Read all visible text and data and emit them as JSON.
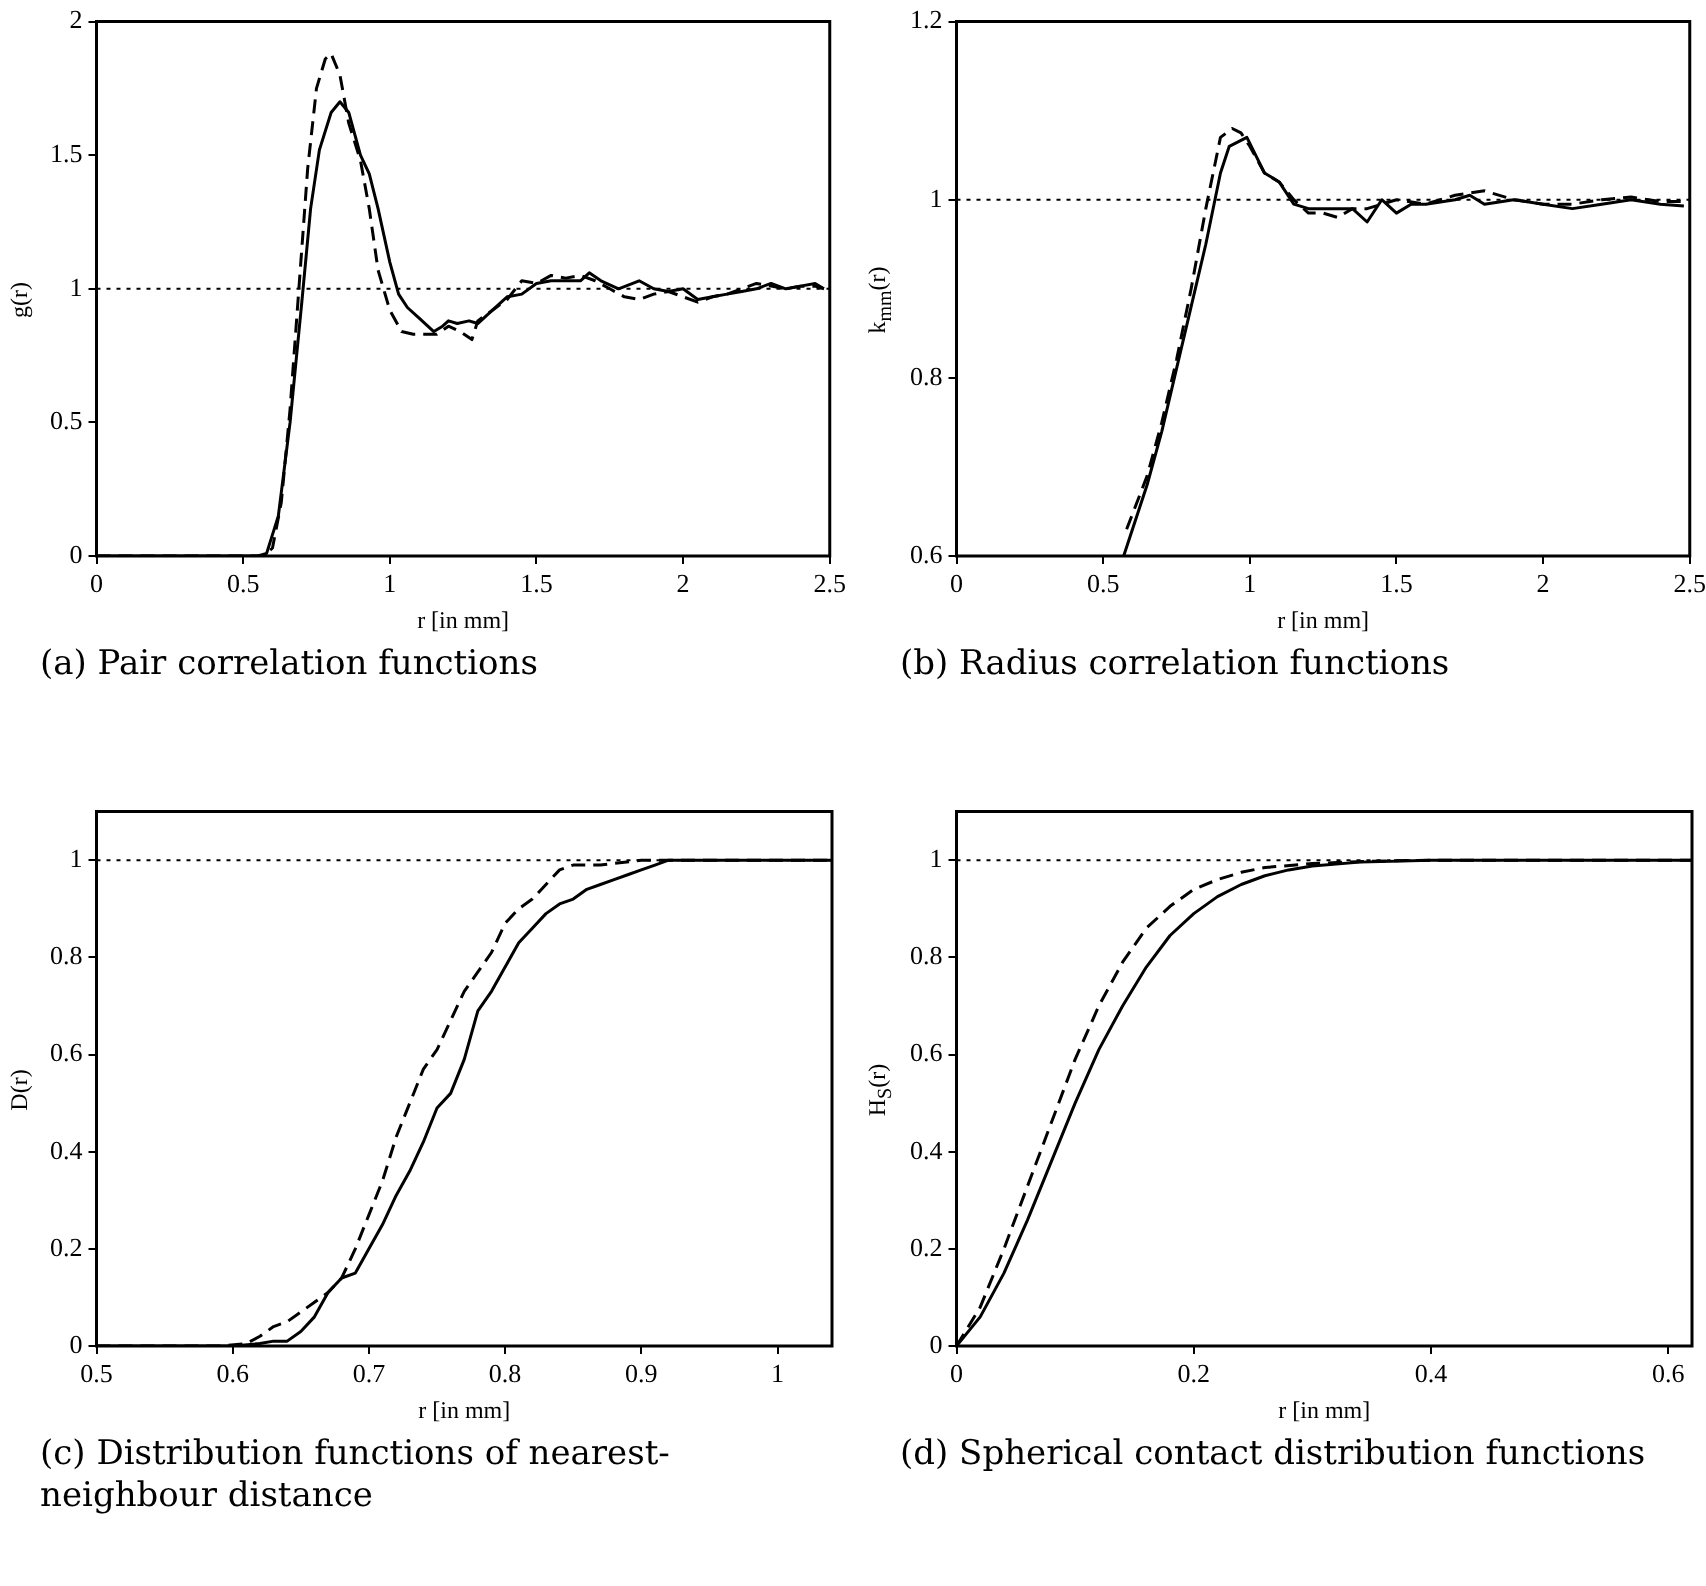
{
  "chart_data": [
    {
      "type": "line",
      "title": "(a) Pair correlation functions",
      "xlabel": "r [in mm]",
      "ylabel": "g(r)",
      "xlim": [
        0,
        2.5
      ],
      "xticks": [
        0,
        0.5,
        1,
        1.5,
        2,
        2.5
      ],
      "ylim": [
        0,
        2
      ],
      "yticks": [
        0,
        0.5,
        1,
        1.5,
        2
      ],
      "grid": false,
      "legend": false,
      "marker": "none",
      "ref_lines": [
        {
          "axis": "y",
          "value": 1,
          "line_style": "dotted",
          "color": "#000000"
        }
      ],
      "series": [
        {
          "color": "#000000",
          "line_style": "solid",
          "x": [
            0,
            0.55,
            0.58,
            0.62,
            0.66,
            0.7,
            0.73,
            0.76,
            0.8,
            0.83,
            0.86,
            0.9,
            0.93,
            0.96,
            1.0,
            1.03,
            1.06,
            1.1,
            1.15,
            1.18,
            1.2,
            1.23,
            1.27,
            1.3,
            1.35,
            1.4,
            1.45,
            1.5,
            1.55,
            1.6,
            1.65,
            1.68,
            1.72,
            1.78,
            1.85,
            1.9,
            1.95,
            2.0,
            2.05,
            2.1,
            2.15,
            2.2,
            2.25,
            2.3,
            2.35,
            2.4,
            2.45,
            2.48
          ],
          "values": [
            0,
            0,
            0.01,
            0.15,
            0.5,
            0.95,
            1.3,
            1.52,
            1.66,
            1.7,
            1.66,
            1.5,
            1.43,
            1.3,
            1.1,
            0.98,
            0.93,
            0.89,
            0.84,
            0.86,
            0.88,
            0.87,
            0.88,
            0.87,
            0.92,
            0.97,
            0.98,
            1.02,
            1.03,
            1.03,
            1.03,
            1.06,
            1.03,
            1.0,
            1.03,
            1.0,
            0.99,
            1.0,
            0.96,
            0.97,
            0.98,
            0.99,
            1.0,
            1.02,
            1.0,
            1.01,
            1.02,
            1.0
          ]
        },
        {
          "color": "#000000",
          "line_style": "dashed",
          "x": [
            0,
            0.57,
            0.6,
            0.63,
            0.66,
            0.69,
            0.72,
            0.75,
            0.78,
            0.8,
            0.83,
            0.86,
            0.9,
            0.93,
            0.96,
            1.0,
            1.04,
            1.08,
            1.12,
            1.16,
            1.2,
            1.24,
            1.28,
            1.3,
            1.35,
            1.4,
            1.45,
            1.5,
            1.55,
            1.6,
            1.65,
            1.7,
            1.75,
            1.8,
            1.85,
            1.9,
            1.95,
            2.0,
            2.05,
            2.1,
            2.15,
            2.2,
            2.25,
            2.3,
            2.35,
            2.4,
            2.45,
            2.48
          ],
          "values": [
            0,
            0,
            0.03,
            0.2,
            0.55,
            1.0,
            1.45,
            1.75,
            1.86,
            1.88,
            1.8,
            1.62,
            1.48,
            1.3,
            1.07,
            0.92,
            0.84,
            0.83,
            0.83,
            0.83,
            0.86,
            0.84,
            0.81,
            0.88,
            0.92,
            0.96,
            1.03,
            1.02,
            1.05,
            1.04,
            1.05,
            1.03,
            1.0,
            0.97,
            0.96,
            0.98,
            0.99,
            0.97,
            0.95,
            0.97,
            0.98,
            1.0,
            1.02,
            1.01,
            1.0,
            1.01,
            1.01,
            1.0
          ]
        }
      ]
    },
    {
      "type": "line",
      "title": "(b) Radius correlation functions",
      "xlabel": "r [in mm]",
      "ylabel": "k$_{mm}$(r)",
      "xlim": [
        0,
        2.5
      ],
      "xticks": [
        0,
        0.5,
        1,
        1.5,
        2,
        2.5
      ],
      "ylim": [
        0.6,
        1.2
      ],
      "yticks": [
        0.6,
        0.8,
        1,
        1.2
      ],
      "grid": false,
      "legend": false,
      "marker": "none",
      "ref_lines": [
        {
          "axis": "y",
          "value": 1,
          "line_style": "dotted",
          "color": "#000000"
        }
      ],
      "series": [
        {
          "color": "#000000",
          "line_style": "solid",
          "x": [
            0.57,
            0.6,
            0.65,
            0.7,
            0.75,
            0.8,
            0.85,
            0.9,
            0.93,
            0.96,
            0.99,
            1.02,
            1.05,
            1.1,
            1.15,
            1.2,
            1.25,
            1.3,
            1.35,
            1.4,
            1.45,
            1.5,
            1.55,
            1.6,
            1.7,
            1.75,
            1.8,
            1.9,
            2.0,
            2.1,
            2.2,
            2.3,
            2.4,
            2.48
          ],
          "values": [
            0.6,
            0.63,
            0.68,
            0.74,
            0.81,
            0.88,
            0.95,
            1.03,
            1.06,
            1.065,
            1.07,
            1.05,
            1.03,
            1.02,
            0.995,
            0.99,
            0.99,
            0.99,
            0.99,
            0.975,
            1.0,
            0.985,
            0.995,
            0.995,
            1.0,
            1.005,
            0.995,
            1.0,
            0.995,
            0.99,
            0.995,
            1.0,
            0.995,
            0.993
          ]
        },
        {
          "color": "#000000",
          "line_style": "dashed",
          "x": [
            0.58,
            0.65,
            0.7,
            0.75,
            0.8,
            0.85,
            0.9,
            0.94,
            0.97,
            1.0,
            1.05,
            1.1,
            1.15,
            1.2,
            1.25,
            1.3,
            1.35,
            1.4,
            1.5,
            1.6,
            1.7,
            1.8,
            1.9,
            2.0,
            2.1,
            2.2,
            2.3,
            2.4,
            2.48
          ],
          "values": [
            0.63,
            0.69,
            0.75,
            0.82,
            0.9,
            0.99,
            1.07,
            1.08,
            1.075,
            1.06,
            1.03,
            1.02,
            1.0,
            0.985,
            0.985,
            0.98,
            0.99,
            0.99,
            1.0,
            0.995,
            1.005,
            1.01,
            1.0,
            0.995,
            0.995,
            1.0,
            1.003,
            0.998,
            0.998
          ]
        }
      ]
    },
    {
      "type": "line",
      "title": "(c) Distribution functions of nearest-neighbour distance",
      "xlabel": "r [in mm]",
      "ylabel": "D(r)",
      "xlim": [
        0.5,
        1.04
      ],
      "xticks": [
        0.5,
        0.6,
        0.7,
        0.8,
        0.9,
        1
      ],
      "ylim": [
        0,
        1.1
      ],
      "yticks": [
        0,
        0.2,
        0.4,
        0.6,
        0.8,
        1
      ],
      "grid": false,
      "legend": false,
      "marker": "none",
      "ref_lines": [
        {
          "axis": "y",
          "value": 1,
          "line_style": "dotted",
          "color": "#000000"
        }
      ],
      "series": [
        {
          "color": "#000000",
          "line_style": "solid",
          "x": [
            0.5,
            0.6,
            0.62,
            0.63,
            0.64,
            0.65,
            0.66,
            0.67,
            0.68,
            0.69,
            0.7,
            0.71,
            0.72,
            0.73,
            0.74,
            0.75,
            0.76,
            0.77,
            0.78,
            0.79,
            0.8,
            0.81,
            0.82,
            0.83,
            0.84,
            0.85,
            0.86,
            0.87,
            0.88,
            0.89,
            0.9,
            0.91,
            0.92,
            1.04
          ],
          "values": [
            0,
            0,
            0.005,
            0.01,
            0.01,
            0.03,
            0.06,
            0.11,
            0.14,
            0.15,
            0.2,
            0.25,
            0.31,
            0.36,
            0.42,
            0.49,
            0.52,
            0.59,
            0.69,
            0.73,
            0.78,
            0.83,
            0.86,
            0.89,
            0.91,
            0.92,
            0.94,
            0.95,
            0.96,
            0.97,
            0.98,
            0.99,
            1.0,
            1.0
          ]
        },
        {
          "color": "#000000",
          "line_style": "dashed",
          "x": [
            0.5,
            0.59,
            0.61,
            0.62,
            0.63,
            0.64,
            0.65,
            0.66,
            0.67,
            0.68,
            0.69,
            0.7,
            0.71,
            0.72,
            0.73,
            0.74,
            0.75,
            0.76,
            0.77,
            0.78,
            0.79,
            0.8,
            0.81,
            0.82,
            0.83,
            0.84,
            0.85,
            0.87,
            0.9,
            1.04
          ],
          "values": [
            0,
            0,
            0.005,
            0.02,
            0.04,
            0.05,
            0.07,
            0.09,
            0.11,
            0.14,
            0.2,
            0.27,
            0.34,
            0.43,
            0.5,
            0.57,
            0.61,
            0.67,
            0.73,
            0.77,
            0.81,
            0.87,
            0.9,
            0.92,
            0.95,
            0.98,
            0.99,
            0.99,
            1.0,
            1.0
          ]
        }
      ]
    },
    {
      "type": "line",
      "title": "(d) Spherical contact distribution functions",
      "xlabel": "r [in mm]",
      "ylabel": "H$_{S}$(r)",
      "xlim": [
        0,
        0.62
      ],
      "xticks": [
        0,
        0.2,
        0.4,
        0.6
      ],
      "ylim": [
        0,
        1.1
      ],
      "yticks": [
        0,
        0.2,
        0.4,
        0.6,
        0.8,
        1
      ],
      "grid": false,
      "legend": false,
      "marker": "none",
      "ref_lines": [
        {
          "axis": "y",
          "value": 1,
          "line_style": "dotted",
          "color": "#000000"
        }
      ],
      "series": [
        {
          "color": "#000000",
          "line_style": "solid",
          "x": [
            0,
            0.02,
            0.04,
            0.06,
            0.08,
            0.1,
            0.12,
            0.14,
            0.16,
            0.18,
            0.2,
            0.22,
            0.24,
            0.26,
            0.28,
            0.3,
            0.34,
            0.4,
            0.62
          ],
          "values": [
            0,
            0.06,
            0.15,
            0.26,
            0.38,
            0.5,
            0.61,
            0.7,
            0.78,
            0.845,
            0.89,
            0.925,
            0.95,
            0.968,
            0.98,
            0.988,
            0.996,
            1.0,
            1.0
          ]
        },
        {
          "color": "#000000",
          "line_style": "dashed",
          "x": [
            0,
            0.02,
            0.04,
            0.06,
            0.08,
            0.1,
            0.12,
            0.14,
            0.16,
            0.18,
            0.2,
            0.22,
            0.24,
            0.26,
            0.3,
            0.35,
            0.4,
            0.62
          ],
          "values": [
            0,
            0.08,
            0.2,
            0.33,
            0.46,
            0.59,
            0.7,
            0.79,
            0.86,
            0.905,
            0.94,
            0.96,
            0.975,
            0.985,
            0.993,
            0.998,
            1.0,
            1.0
          ]
        }
      ]
    }
  ]
}
